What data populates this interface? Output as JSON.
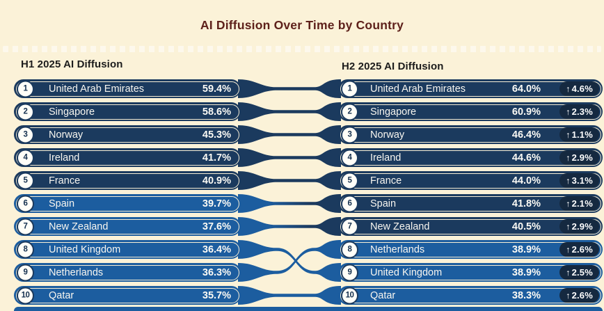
{
  "title": "AI Diffusion Over Time by Country",
  "palette": {
    "background": "#fbf2d8",
    "dark_pill": "#1b3a5e",
    "light_pill": "#1c5d9f",
    "change_badge": "#152940",
    "inner_ring": "#f8efd6",
    "title_color": "#5e211b"
  },
  "columns": {
    "left": {
      "header": "H1 2025 AI Diffusion",
      "rows": [
        {
          "rank": "1",
          "country": "United Arab Emirates",
          "value": "59.4%",
          "tone": "dark"
        },
        {
          "rank": "2",
          "country": "Singapore",
          "value": "58.6%",
          "tone": "dark"
        },
        {
          "rank": "3",
          "country": "Norway",
          "value": "45.3%",
          "tone": "dark"
        },
        {
          "rank": "4",
          "country": "Ireland",
          "value": "41.7%",
          "tone": "dark"
        },
        {
          "rank": "5",
          "country": "France",
          "value": "40.9%",
          "tone": "dark"
        },
        {
          "rank": "6",
          "country": "Spain",
          "value": "39.7%",
          "tone": "light"
        },
        {
          "rank": "7",
          "country": "New Zealand",
          "value": "37.6%",
          "tone": "light"
        },
        {
          "rank": "8",
          "country": "United Kingdom",
          "value": "36.4%",
          "tone": "light"
        },
        {
          "rank": "9",
          "country": "Netherlands",
          "value": "36.3%",
          "tone": "light"
        },
        {
          "rank": "10",
          "country": "Qatar",
          "value": "35.7%",
          "tone": "light"
        }
      ]
    },
    "right": {
      "header": "H2 2025 AI Diffusion",
      "rows": [
        {
          "rank": "1",
          "country": "United Arab Emirates",
          "value": "64.0%",
          "change": "4.6%",
          "tone": "dark"
        },
        {
          "rank": "2",
          "country": "Singapore",
          "value": "60.9%",
          "change": "2.3%",
          "tone": "dark"
        },
        {
          "rank": "3",
          "country": "Norway",
          "value": "46.4%",
          "change": "1.1%",
          "tone": "dark"
        },
        {
          "rank": "4",
          "country": "Ireland",
          "value": "44.6%",
          "change": "2.9%",
          "tone": "dark"
        },
        {
          "rank": "5",
          "country": "France",
          "value": "44.0%",
          "change": "3.1%",
          "tone": "dark"
        },
        {
          "rank": "6",
          "country": "Spain",
          "value": "41.8%",
          "change": "2.1%",
          "tone": "dark"
        },
        {
          "rank": "7",
          "country": "New Zealand",
          "value": "40.5%",
          "change": "2.9%",
          "tone": "dark"
        },
        {
          "rank": "8",
          "country": "Netherlands",
          "value": "38.9%",
          "change": "2.6%",
          "tone": "light"
        },
        {
          "rank": "9",
          "country": "United Kingdom",
          "value": "38.9%",
          "change": "2.5%",
          "tone": "light"
        },
        {
          "rank": "10",
          "country": "Qatar",
          "value": "38.3%",
          "change": "2.6%",
          "tone": "light"
        }
      ]
    }
  },
  "chart_data": {
    "type": "table",
    "title": "AI Diffusion Over Time by Country",
    "series": [
      {
        "name": "H1 2025 AI Diffusion",
        "rows": [
          [
            "United Arab Emirates",
            59.4
          ],
          [
            "Singapore",
            58.6
          ],
          [
            "Norway",
            45.3
          ],
          [
            "Ireland",
            41.7
          ],
          [
            "France",
            40.9
          ],
          [
            "Spain",
            39.7
          ],
          [
            "New Zealand",
            37.6
          ],
          [
            "United Kingdom",
            36.4
          ],
          [
            "Netherlands",
            36.3
          ],
          [
            "Qatar",
            35.7
          ]
        ]
      },
      {
        "name": "H2 2025 AI Diffusion",
        "rows": [
          [
            "United Arab Emirates",
            64.0,
            4.6
          ],
          [
            "Singapore",
            60.9,
            2.3
          ],
          [
            "Norway",
            46.4,
            1.1
          ],
          [
            "Ireland",
            44.6,
            2.9
          ],
          [
            "France",
            44.0,
            3.1
          ],
          [
            "Spain",
            41.8,
            2.1
          ],
          [
            "New Zealand",
            40.5,
            2.9
          ],
          [
            "Netherlands",
            38.9,
            2.6
          ],
          [
            "United Kingdom",
            38.9,
            2.5
          ],
          [
            "Qatar",
            38.3,
            2.6
          ]
        ]
      }
    ],
    "notes": "Slope connectors link each country's H1 rank to its H2 rank; United Kingdom and Netherlands swap ranks 8/9."
  }
}
